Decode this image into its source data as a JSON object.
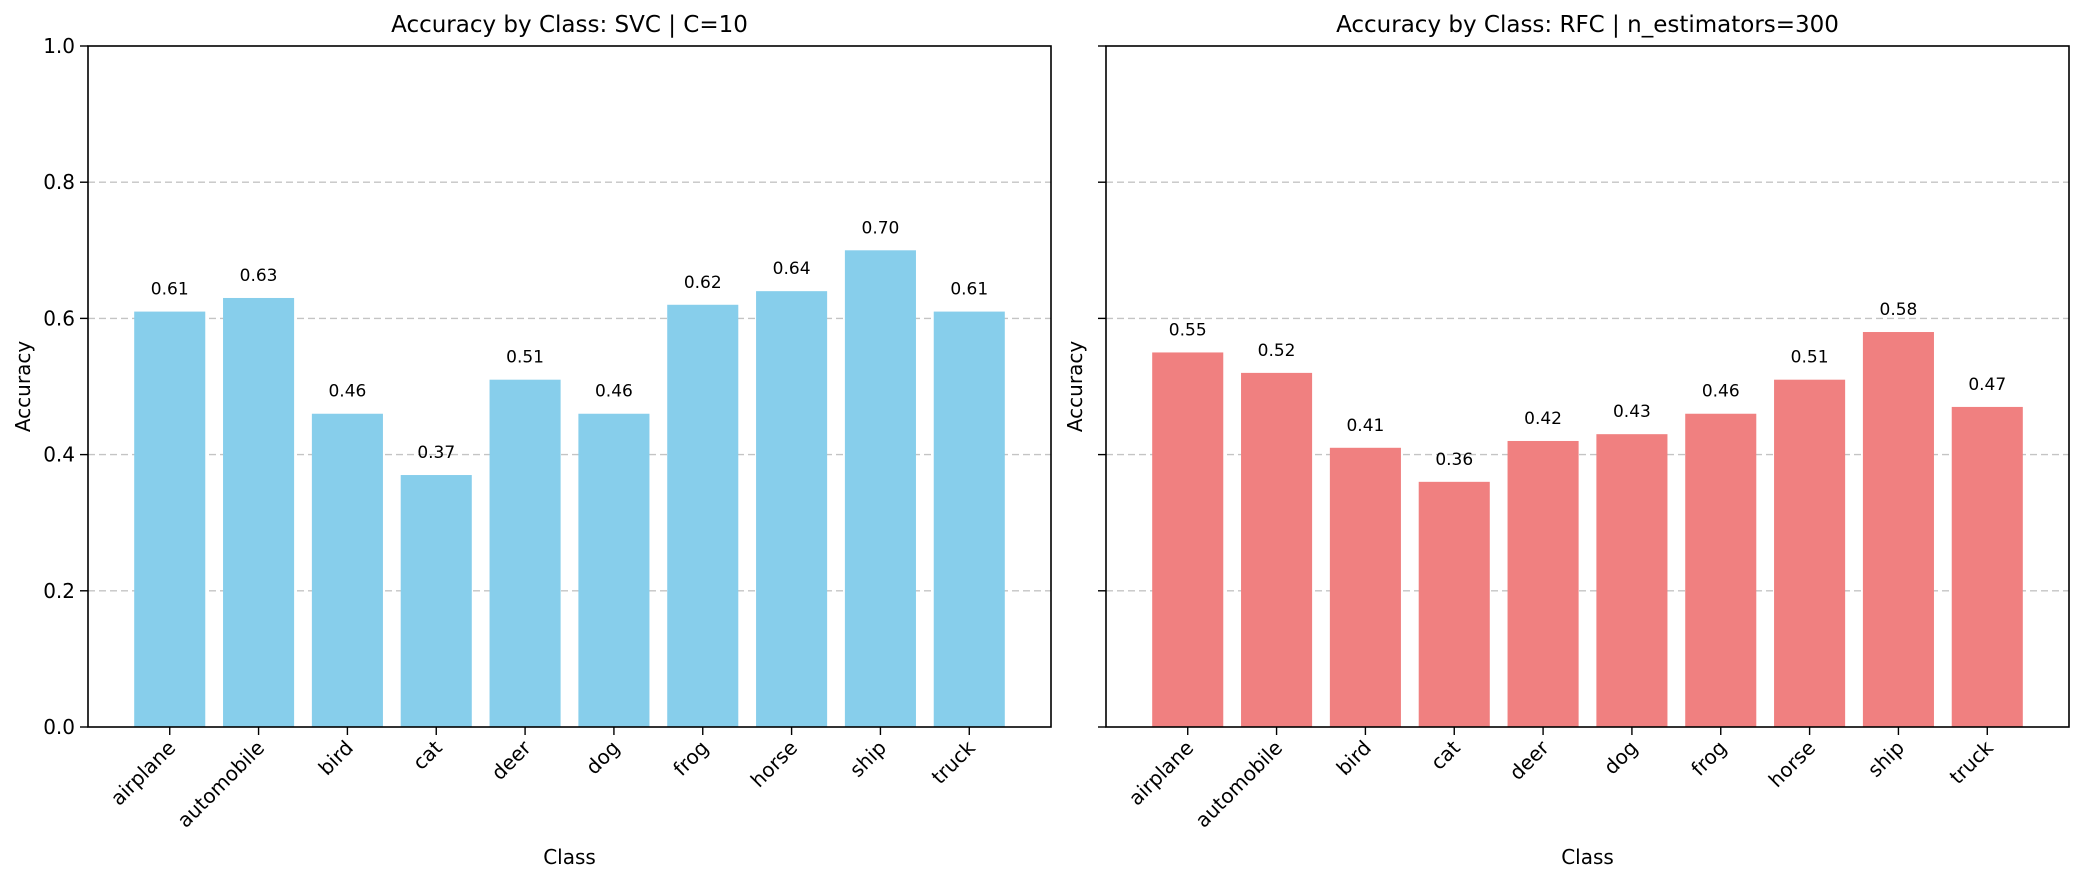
{
  "chart_data": [
    {
      "type": "bar",
      "title": "Accuracy by Class: SVC | C=10",
      "xlabel": "Class",
      "ylabel": "Accuracy",
      "ylim": [
        0,
        1.0
      ],
      "yticks": [
        "0.0",
        "0.2",
        "0.4",
        "0.6",
        "0.8",
        "1.0"
      ],
      "grid": "y-dashed",
      "color": "#87CEEB",
      "categories": [
        "airplane",
        "automobile",
        "bird",
        "cat",
        "deer",
        "dog",
        "frog",
        "horse",
        "ship",
        "truck"
      ],
      "values": [
        0.61,
        0.63,
        0.46,
        0.37,
        0.51,
        0.46,
        0.62,
        0.64,
        0.7,
        0.61
      ],
      "value_labels": [
        "0.61",
        "0.63",
        "0.46",
        "0.37",
        "0.51",
        "0.46",
        "0.62",
        "0.64",
        "0.70",
        "0.61"
      ]
    },
    {
      "type": "bar",
      "title": "Accuracy by Class: RFC | n_estimators=300",
      "xlabel": "Class",
      "ylabel": "Accuracy",
      "ylim": [
        0,
        1.0
      ],
      "yticks": [],
      "grid": "y-dashed",
      "color": "#F08080",
      "categories": [
        "airplane",
        "automobile",
        "bird",
        "cat",
        "deer",
        "dog",
        "frog",
        "horse",
        "ship",
        "truck"
      ],
      "values": [
        0.55,
        0.52,
        0.41,
        0.36,
        0.42,
        0.43,
        0.46,
        0.51,
        0.58,
        0.47
      ],
      "value_labels": [
        "0.55",
        "0.52",
        "0.41",
        "0.36",
        "0.42",
        "0.43",
        "0.46",
        "0.51",
        "0.58",
        "0.47"
      ]
    }
  ]
}
